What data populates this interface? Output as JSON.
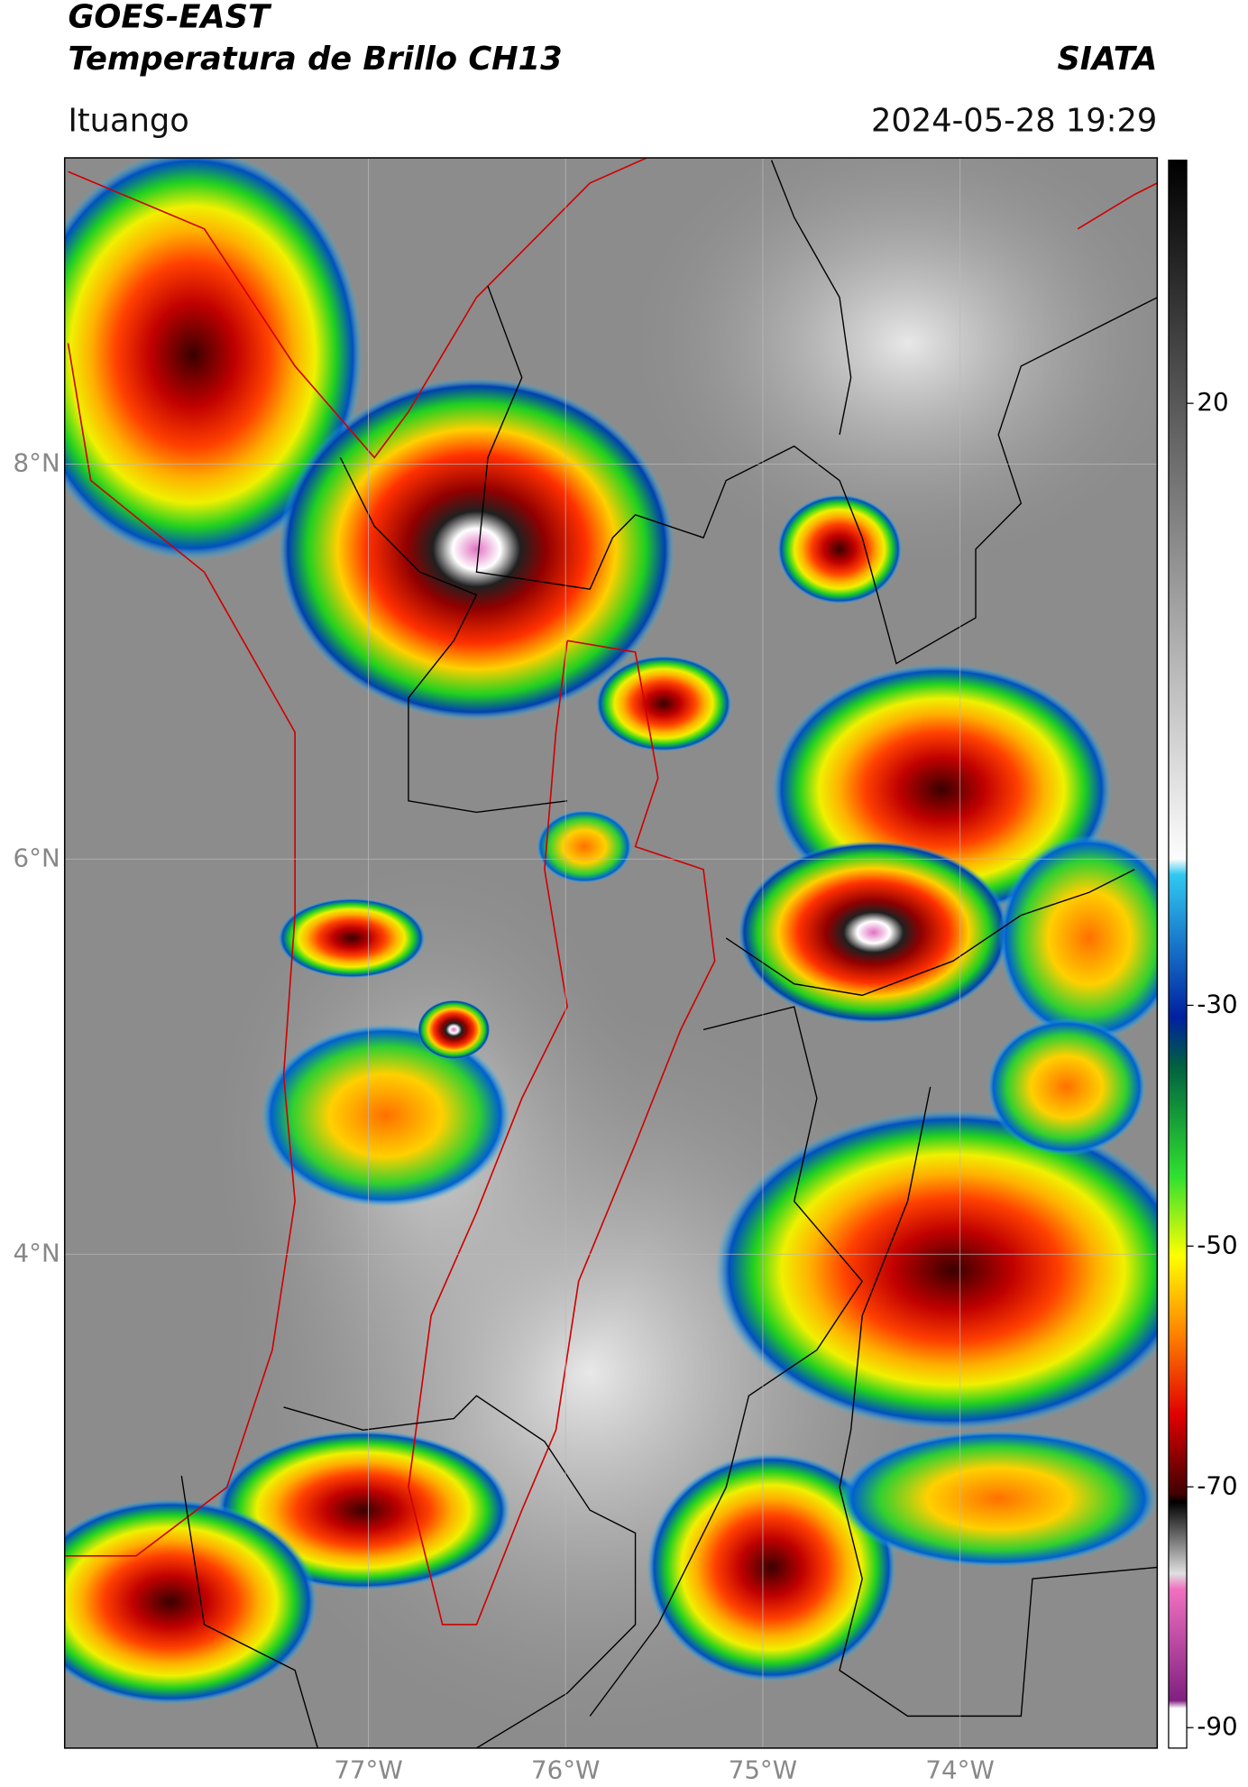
{
  "header": {
    "title": "GOES-EAST",
    "subtitle": "Temperatura de Brillo CH13",
    "agency": "SIATA",
    "location": "Ituango",
    "datetime": "2024-05-28 19:29"
  },
  "map": {
    "xlim": [
      -78.54,
      -73.0
    ],
    "ylim": [
      1.5,
      9.55
    ],
    "xticks": [
      {
        "value": -77,
        "label": "77°W"
      },
      {
        "value": -76,
        "label": "76°W"
      },
      {
        "value": -75,
        "label": "75°W"
      },
      {
        "value": -74,
        "label": "74°W"
      }
    ],
    "yticks": [
      {
        "value": 8,
        "label": "8°N"
      },
      {
        "value": 6,
        "label": "6°N"
      },
      {
        "value": 4,
        "label": "4°N"
      }
    ],
    "grid": true
  },
  "colorbar": {
    "lim": [
      -91.7,
      40.2
    ],
    "ticks": [
      20,
      -30,
      -50,
      -70,
      -90
    ]
  }
}
